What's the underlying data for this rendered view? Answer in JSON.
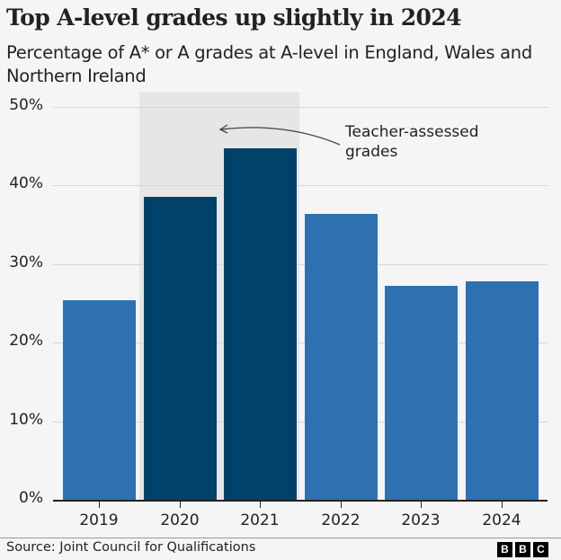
{
  "header": {
    "title": "Top A-level grades up slightly in 2024",
    "subtitle": "Percentage of A* or A grades at A-level in England, Wales and Northern Ireland"
  },
  "annotation": {
    "line1": "Teacher-assessed",
    "line2": "grades"
  },
  "footer": {
    "source": "Source: Joint Council for Qualifications",
    "logo": [
      "B",
      "B",
      "C"
    ]
  },
  "colors": {
    "normal_bar": "#2e71b1",
    "highlight_bar": "#004269",
    "shade": "#e6e6e6",
    "background": "#f5f5f5"
  },
  "yticks": [
    "0%",
    "10%",
    "20%",
    "30%",
    "40%",
    "50%"
  ],
  "chart_data": {
    "type": "bar",
    "title": "Top A-level grades up slightly in 2024",
    "subtitle": "Percentage of A* or A grades at A-level in England, Wales and Northern Ireland",
    "categories": [
      "2019",
      "2020",
      "2021",
      "2022",
      "2023",
      "2024"
    ],
    "values": [
      25.4,
      38.6,
      44.7,
      36.4,
      27.2,
      27.8
    ],
    "highlighted": [
      "2020",
      "2021"
    ],
    "annotation": "Teacher-assessed grades (2020, 2021 shaded)",
    "xlabel": "",
    "ylabel": "",
    "ylim": [
      0,
      50
    ],
    "ytick_labels": [
      "0%",
      "10%",
      "20%",
      "30%",
      "40%",
      "50%"
    ],
    "grid": true,
    "legend": "none",
    "source": "Source: Joint Council for Qualifications"
  }
}
